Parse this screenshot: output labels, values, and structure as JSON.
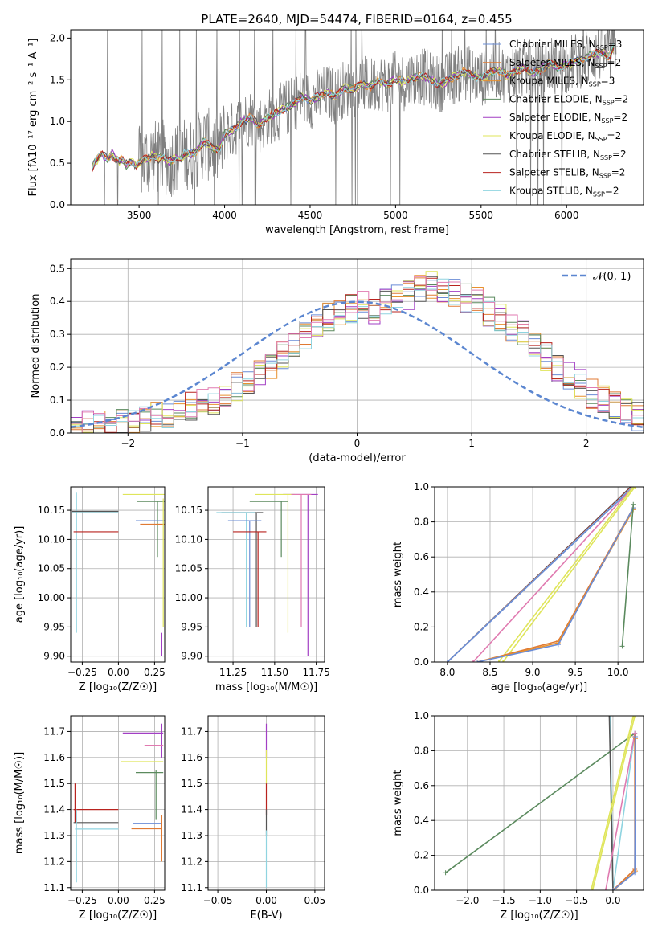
{
  "figure": {
    "title": "PLATE=2640, MJD=54474, FIBERID=0164, z=0.455"
  },
  "colors": {
    "Chabrier MILES": "#6a8cd6",
    "Salpeter MILES": "#e07a33",
    "Kroupa MILES": "#e8912f",
    "Chabrier ELODIE": "#5b8a5e",
    "Salpeter ELODIE": "#a23fc4",
    "Kroupa ELODIE": "#dfe55a",
    "Chabrier STELIB": "#555555",
    "Salpeter STELIB": "#b8231f",
    "Kroupa STELIB": "#8fd4e0",
    "spectrum": "#808080",
    "normal": "#5b86d0",
    "pink": "#e07ab0",
    "grid": "#b0b0b0"
  },
  "chart_data": [
    {
      "type": "line",
      "panel": "spectrum",
      "xlabel": "wavelength [Angstrom, rest frame]",
      "ylabel": "Flux [fλ10⁻¹⁷ erg cm⁻² s⁻¹ A⁻¹]",
      "xlim": [
        3100,
        6450
      ],
      "ylim": [
        0,
        2.1
      ],
      "xticks": [
        3500,
        4000,
        4500,
        5000,
        5500,
        6000
      ],
      "yticks": [
        0.0,
        0.5,
        1.0,
        1.5,
        2.0
      ],
      "grid": false,
      "legend": "top-right",
      "series": [
        {
          "name": "Chabrier MILES, N_SSP=3",
          "key": "Chabrier MILES"
        },
        {
          "name": "Salpeter MILES, N_SSP=2",
          "key": "Salpeter MILES"
        },
        {
          "name": "Kroupa MILES, N_SSP=3",
          "key": "Kroupa MILES"
        },
        {
          "name": "Chabrier ELODIE, N_SSP=2",
          "key": "Chabrier ELODIE"
        },
        {
          "name": "Salpeter ELODIE, N_SSP=2",
          "key": "Salpeter ELODIE"
        },
        {
          "name": "Kroupa ELODIE, N_SSP=2",
          "key": "Kroupa ELODIE"
        },
        {
          "name": "Chabrier STELIB, N_SSP=2",
          "key": "Chabrier STELIB"
        },
        {
          "name": "Salpeter STELIB, N_SSP=2",
          "key": "Salpeter STELIB"
        },
        {
          "name": "Kroupa STELIB, N_SSP=2",
          "key": "Kroupa STELIB"
        }
      ],
      "model_curve": {
        "x": [
          3220,
          3240,
          3260,
          3280,
          3300,
          3320,
          3340,
          3360,
          3380,
          3400,
          3420,
          3440,
          3460,
          3480,
          3500,
          3520,
          3540,
          3560,
          3580,
          3600,
          3620,
          3640,
          3660,
          3680,
          3700,
          3720,
          3740,
          3760,
          3780,
          3800,
          3820,
          3840,
          3860,
          3880,
          3900,
          3920,
          3940,
          3960,
          3980,
          4000,
          4050,
          4100,
          4150,
          4200,
          4250,
          4300,
          4350,
          4400,
          4450,
          4500,
          4550,
          4600,
          4650,
          4700,
          4750,
          4800,
          4850,
          4900,
          4950,
          5000,
          5050,
          5100,
          5150,
          5200,
          5250,
          5300,
          5350,
          5400,
          5450,
          5500,
          5550,
          5600,
          5650,
          5700,
          5750,
          5800,
          5850,
          5900,
          5950,
          6000,
          6050,
          6100,
          6150,
          6200,
          6250,
          6280
        ],
        "y": [
          0.42,
          0.52,
          0.55,
          0.6,
          0.58,
          0.55,
          0.62,
          0.56,
          0.52,
          0.55,
          0.48,
          0.5,
          0.52,
          0.47,
          0.5,
          0.53,
          0.55,
          0.55,
          0.6,
          0.57,
          0.55,
          0.58,
          0.54,
          0.52,
          0.55,
          0.57,
          0.55,
          0.6,
          0.62,
          0.6,
          0.62,
          0.65,
          0.72,
          0.75,
          0.73,
          0.7,
          0.68,
          0.66,
          0.7,
          0.85,
          0.9,
          1.0,
          1.05,
          0.95,
          1.05,
          1.1,
          1.15,
          1.2,
          1.3,
          1.25,
          1.3,
          1.35,
          1.3,
          1.4,
          1.38,
          1.45,
          1.42,
          1.48,
          1.44,
          1.5,
          1.47,
          1.52,
          1.55,
          1.5,
          1.45,
          1.48,
          1.55,
          1.6,
          1.55,
          1.52,
          1.58,
          1.62,
          1.55,
          1.6,
          1.65,
          1.58,
          1.62,
          1.7,
          1.65,
          1.68,
          1.72,
          1.75,
          1.8,
          1.82,
          1.78,
          1.9
        ]
      }
    },
    {
      "type": "histogram",
      "panel": "residuals",
      "xlabel": "(data-model)/error",
      "ylabel": "Normed distribution",
      "xlim": [
        -2.5,
        2.5
      ],
      "ylim": [
        0,
        0.53
      ],
      "xticks": [
        -2,
        -1,
        0,
        1,
        2
      ],
      "yticks": [
        0.0,
        0.1,
        0.2,
        0.3,
        0.4,
        0.5
      ],
      "grid": true,
      "legend": "top-right",
      "normal_label": "𝒩(0, 1)",
      "bin_edges_start": -2.5,
      "bin_width": 0.1,
      "base_hist": [
        0.02,
        0.025,
        0.03,
        0.025,
        0.03,
        0.035,
        0.04,
        0.05,
        0.06,
        0.07,
        0.08,
        0.09,
        0.1,
        0.12,
        0.14,
        0.16,
        0.18,
        0.2,
        0.24,
        0.27,
        0.3,
        0.33,
        0.35,
        0.37,
        0.38,
        0.39,
        0.37,
        0.4,
        0.41,
        0.42,
        0.44,
        0.45,
        0.44,
        0.43,
        0.41,
        0.4,
        0.37,
        0.35,
        0.32,
        0.3,
        0.26,
        0.23,
        0.2,
        0.17,
        0.15,
        0.12,
        0.1,
        0.08,
        0.06,
        0.05
      ]
    },
    {
      "type": "scatter",
      "panel": "Z-age",
      "xlabel": "Z [log₁₀(Z/Z☉)]",
      "ylabel": "age  [log₁₀(age/yr)]",
      "xlim": [
        -0.33,
        0.32
      ],
      "ylim": [
        9.89,
        10.19
      ],
      "xticks": [
        -0.25,
        0.0,
        0.25
      ],
      "yticks": [
        9.9,
        9.95,
        10.0,
        10.05,
        10.1,
        10.15
      ],
      "grid": true
    },
    {
      "type": "scatter",
      "panel": "mass-age",
      "xlabel": "mass [log₁₀(M/M☉)]",
      "ylabel": "",
      "xlim": [
        11.1,
        11.8
      ],
      "ylim": [
        9.89,
        10.19
      ],
      "xticks": [
        11.25,
        11.5,
        11.75
      ],
      "yticks": [
        9.9,
        9.95,
        10.0,
        10.05,
        10.1,
        10.15
      ],
      "grid": true
    },
    {
      "type": "line",
      "panel": "age-weight",
      "xlabel": "age  [log₁₀(age/yr)]",
      "ylabel": "mass weight",
      "xlim": [
        7.85,
        10.3
      ],
      "ylim": [
        0,
        1.0
      ],
      "xticks": [
        8.0,
        8.5,
        9.0,
        9.5,
        10.0
      ],
      "yticks": [
        0.0,
        0.2,
        0.4,
        0.6,
        0.8,
        1.0
      ],
      "grid": true
    },
    {
      "type": "scatter",
      "panel": "Z-mass",
      "xlabel": "Z [log₁₀(Z/Z☉)]",
      "ylabel": "mass [log₁₀(M/M☉)]",
      "xlim": [
        -0.33,
        0.32
      ],
      "ylim": [
        11.09,
        11.76
      ],
      "xticks": [
        -0.25,
        0.0,
        0.25
      ],
      "yticks": [
        11.1,
        11.2,
        11.3,
        11.4,
        11.5,
        11.6,
        11.7
      ],
      "grid": true
    },
    {
      "type": "scatter",
      "panel": "EBV-mass",
      "xlabel": "E(B-V)",
      "ylabel": "",
      "xlim": [
        -0.06,
        0.06
      ],
      "ylim": [
        11.09,
        11.76
      ],
      "xticks": [
        -0.05,
        0.0,
        0.05
      ],
      "yticks": [
        11.1,
        11.2,
        11.3,
        11.4,
        11.5,
        11.6,
        11.7
      ],
      "grid": true
    },
    {
      "type": "line",
      "panel": "Z-weight",
      "xlabel": "Z [log₁₀(Z/Z☉)]",
      "ylabel": "mass weight",
      "xlim": [
        -2.45,
        0.42
      ],
      "ylim": [
        0,
        1.0
      ],
      "xticks": [
        -2.0,
        -1.5,
        -1.0,
        -0.5,
        0.0
      ],
      "yticks": [
        0.0,
        0.2,
        0.4,
        0.6,
        0.8,
        1.0
      ],
      "grid": true
    }
  ]
}
